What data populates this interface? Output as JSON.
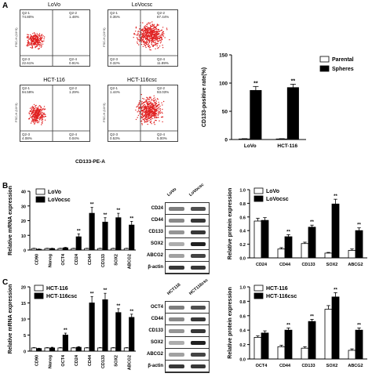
{
  "panels": {
    "A": "A",
    "B": "B",
    "C": "C"
  },
  "flow": {
    "x_axis_title": "CD133-PE-A",
    "y_axis_tick": "FSC-H (10^3)",
    "plots": [
      {
        "title": "LoVo",
        "q1": "Q2-1\n74.80%",
        "q2": "Q2-2\n1.48%",
        "q3": "Q2-3\n22.61%",
        "q4": "Q2-4\n0.91%"
      },
      {
        "title": "LoVocsc",
        "q1": "Q2-1\n0.35%",
        "q2": "Q2-2\n87.44%",
        "q3": "Q2-3\n0.32%",
        "q4": "Q2-4\n11.89%"
      },
      {
        "title": "HCT-116",
        "q1": "Q2-1\n94.59%",
        "q2": "Q2-2\n1.29%",
        "q3": "Q2-3\n4.08%",
        "q4": "Q2-4\n0.04%"
      },
      {
        "title": "HCT-116csc",
        "q1": "Q2-1\n1.44%",
        "q2": "Q2-2\n93.03%",
        "q3": "Q2-3\n0.53%",
        "q4": "Q2-4\n5.00%"
      }
    ]
  },
  "western": {
    "B": {
      "lanes": [
        "LoVo",
        "LoVocsc"
      ],
      "rows": [
        "CD24",
        "CD44",
        "CD133",
        "SOX2",
        "ABCG2",
        "β-actin"
      ]
    },
    "C": {
      "lanes": [
        "HCT116",
        "HCT116csc"
      ],
      "rows": [
        "OCT4",
        "CD44",
        "CD133",
        "SOX2",
        "ABCG2",
        "β-actin"
      ]
    }
  },
  "chart_data": [
    {
      "id": "A-cd133",
      "type": "bar",
      "title": "",
      "ylabel": "CD133-positive rate(%)",
      "xlabel": "",
      "categories": [
        "LoVo",
        "HCT-116"
      ],
      "ylim": [
        0,
        150
      ],
      "yticks": [
        0,
        50,
        100,
        150
      ],
      "series": [
        {
          "name": "Parental",
          "values": [
            1,
            1
          ],
          "errors": [
            0.5,
            0.5
          ],
          "color": "#ffffff"
        },
        {
          "name": "Spheres",
          "values": [
            87,
            92
          ],
          "errors": [
            7,
            6
          ],
          "color": "#000000"
        }
      ],
      "annotations": [
        "**",
        "**"
      ],
      "legend": "top-right"
    },
    {
      "id": "B-mrna",
      "type": "bar",
      "title": "",
      "ylabel": "Relative mRNA expression",
      "xlabel": "",
      "categories": [
        "CD90",
        "Nanog",
        "OCT4",
        "CD24",
        "CD44",
        "CD133",
        "SOX2",
        "ABCG2"
      ],
      "ylim": [
        0,
        40
      ],
      "yticks": [
        0,
        10,
        20,
        30,
        40
      ],
      "series": [
        {
          "name": "LoVo",
          "values": [
            1,
            1,
            1,
            1,
            1,
            1,
            1,
            1
          ],
          "errors": [
            0.2,
            0.2,
            0.2,
            0.2,
            0.2,
            0.2,
            0.2,
            0.2
          ],
          "color": "#ffffff"
        },
        {
          "name": "LoVocsc",
          "values": [
            0.5,
            1,
            1.5,
            9,
            25,
            19,
            22,
            17
          ],
          "errors": [
            0.2,
            0.2,
            0.3,
            2,
            4,
            3,
            3,
            2.5
          ],
          "color": "#000000"
        }
      ],
      "annotations": [
        "",
        "",
        "",
        "**",
        "**",
        "**",
        "**",
        "**"
      ],
      "legend": "top-left"
    },
    {
      "id": "B-protein",
      "type": "bar",
      "title": "",
      "ylabel": "Relative protein expression",
      "xlabel": "",
      "categories": [
        "CD24",
        "CD44",
        "CD133",
        "SOX2",
        "ABCG2"
      ],
      "ylim": [
        0,
        1.0
      ],
      "yticks": [
        0.0,
        0.2,
        0.4,
        0.6,
        0.8,
        1.0
      ],
      "series": [
        {
          "name": "LoVo",
          "values": [
            0.54,
            0.13,
            0.21,
            0.07,
            0.11
          ],
          "errors": [
            0.04,
            0.02,
            0.02,
            0.01,
            0.02
          ],
          "color": "#ffffff"
        },
        {
          "name": "LoVocsc",
          "values": [
            0.55,
            0.31,
            0.45,
            0.79,
            0.4
          ],
          "errors": [
            0.04,
            0.03,
            0.03,
            0.07,
            0.04
          ],
          "color": "#000000"
        }
      ],
      "annotations": [
        "",
        "**",
        "**",
        "**",
        "**"
      ],
      "legend": "top-left"
    },
    {
      "id": "C-mrna",
      "type": "bar",
      "title": "",
      "ylabel": "Relative mRNA expression",
      "xlabel": "",
      "categories": [
        "CD90",
        "Nanog",
        "OCT4",
        "CD24",
        "CD44",
        "CD133",
        "SOX2",
        "ABCG2"
      ],
      "ylim": [
        0,
        20
      ],
      "yticks": [
        0,
        5,
        10,
        15,
        20
      ],
      "series": [
        {
          "name": "HCT-116",
          "values": [
            1,
            1,
            1,
            1,
            1,
            1,
            1,
            1
          ],
          "errors": [
            0.1,
            0.1,
            0.1,
            0.1,
            0.1,
            0.1,
            0.1,
            0.1
          ],
          "color": "#ffffff"
        },
        {
          "name": "HCT-116csc",
          "values": [
            0.8,
            1,
            5,
            1.2,
            15,
            16,
            12,
            10.5
          ],
          "errors": [
            0.1,
            0.2,
            0.6,
            0.2,
            2,
            2,
            1.2,
            1
          ],
          "color": "#000000"
        }
      ],
      "annotations": [
        "",
        "",
        "**",
        "",
        "**",
        "**",
        "**",
        "**"
      ],
      "legend": "top-left"
    },
    {
      "id": "C-protein",
      "type": "bar",
      "title": "",
      "ylabel": "Relative protein expression",
      "xlabel": "",
      "categories": [
        "OCT4",
        "CD44",
        "CD133",
        "SOX2",
        "ABCG2"
      ],
      "ylim": [
        0,
        1.0
      ],
      "yticks": [
        0.0,
        0.2,
        0.4,
        0.6,
        0.8,
        1.0
      ],
      "series": [
        {
          "name": "HCT-116",
          "values": [
            0.3,
            0.17,
            0.15,
            0.69,
            0.12
          ],
          "errors": [
            0.02,
            0.02,
            0.02,
            0.05,
            0.02
          ],
          "color": "#ffffff"
        },
        {
          "name": "HCT-116csc",
          "values": [
            0.36,
            0.4,
            0.52,
            0.86,
            0.4
          ],
          "errors": [
            0.03,
            0.03,
            0.03,
            0.06,
            0.03
          ],
          "color": "#000000"
        }
      ],
      "annotations": [
        "",
        "**",
        "**",
        "**",
        "**"
      ],
      "legend": "top-left"
    }
  ]
}
